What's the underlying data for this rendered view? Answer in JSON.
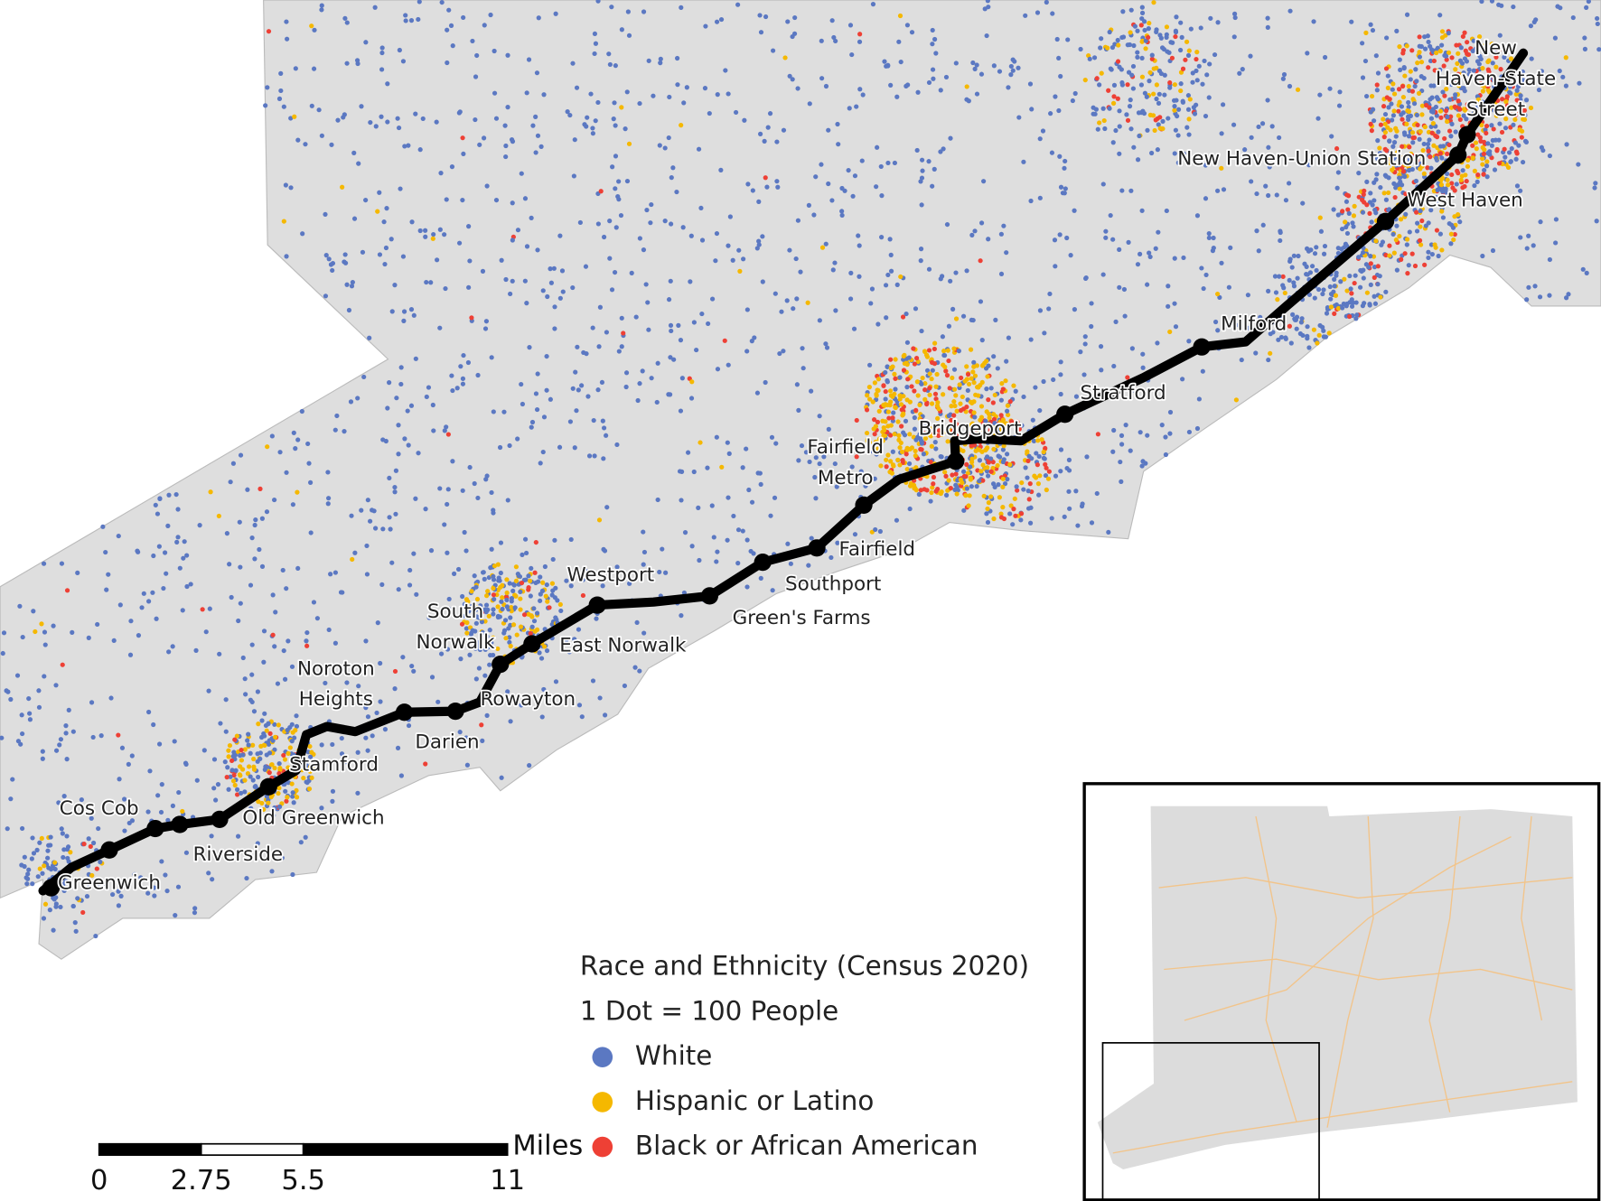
{
  "stations": [
    "Greenwich",
    "Cos Cob",
    "Riverside",
    "Old Greenwich",
    "Stamford",
    "Noroton Heights",
    "Darien",
    "Rowayton",
    "South Norwalk",
    "East Norwalk",
    "Westport",
    "Green's Farms",
    "Southport",
    "Fairfield",
    "Fairfield Metro",
    "Bridgeport",
    "Stratford",
    "Milford",
    "West Haven",
    "New Haven-Union Station",
    "New Haven-State Street"
  ],
  "legend": {
    "title": "Race and Ethnicity (Census 2020)",
    "subtitle": "1 Dot = 100 People",
    "items": [
      {
        "label": "White",
        "color": "#5b78c2"
      },
      {
        "label": "Hispanic or Latino",
        "color": "#f5b800"
      },
      {
        "label": "Black or African American",
        "color": "#ee4035"
      }
    ]
  },
  "scale_bar": {
    "ticks": [
      0,
      2.75,
      5.5,
      11
    ],
    "unit": "Miles"
  }
}
